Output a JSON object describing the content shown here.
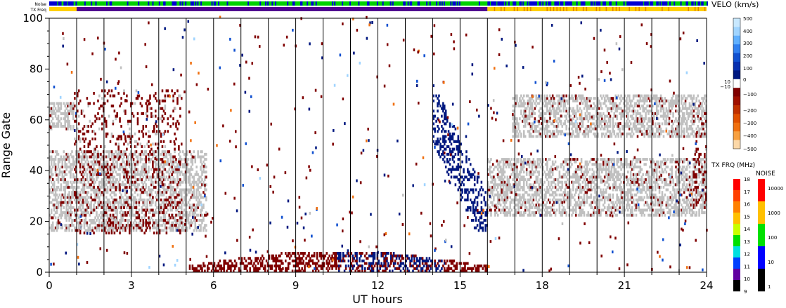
{
  "chart_data": {
    "type": "heatmap",
    "title": "",
    "xlabel": "UT hours",
    "ylabel": "Range Gate",
    "xlim": [
      0,
      24
    ],
    "ylim": [
      0,
      100
    ],
    "x_ticks": [
      "0",
      "3",
      "6",
      "9",
      "12",
      "15",
      "18",
      "21",
      "24"
    ],
    "y_ticks": [
      "0",
      "20",
      "40",
      "60",
      "80",
      "100"
    ],
    "top_strips": [
      {
        "label": "Noise",
        "colors": [
          "#00d000",
          "#0000d0",
          "#00d000"
        ]
      },
      {
        "label": "TX Freq",
        "colors": [
          "#ffd000",
          "#500090",
          "#ffd000"
        ],
        "breaks": [
          1.0,
          16.0
        ]
      }
    ],
    "velocity_scale": {
      "title": "VELO (km/s)",
      "labels": [
        "500",
        "400",
        "300",
        "200",
        "100",
        "0",
        "10",
        "−10",
        "−100",
        "−200",
        "−300",
        "−400",
        "−500"
      ],
      "colors": [
        "#c8e8ff",
        "#a0d4ff",
        "#60b0ff",
        "#3080f0",
        "#1050d0",
        "#0830b0",
        "#001880",
        "#ffffff",
        "#800000",
        "#a01000",
        "#c03000",
        "#e05000",
        "#f07010",
        "#f8a040",
        "#fcd8a8"
      ]
    },
    "txfreq_scale": {
      "title": "TX FRQ (MHz)",
      "labels": [
        "18",
        "17",
        "16",
        "15",
        "14",
        "13",
        "12",
        "11",
        "10",
        "9"
      ],
      "colors": [
        "#ff0000",
        "#ff4000",
        "#ff8000",
        "#ffc000",
        "#c8ff00",
        "#00e000",
        "#00e0e0",
        "#0040ff",
        "#6000a0",
        "#000000"
      ]
    },
    "noise_scale": {
      "title": "NOISE",
      "labels": [
        "10000",
        "1000",
        "100",
        "10",
        "1"
      ],
      "colors": [
        "#ff0000",
        "#ffc000",
        "#00e000",
        "#0000ff",
        "#000000"
      ]
    },
    "ground_scatter_color": "#c0c0c0",
    "regions": [
      {
        "name": "dayside-ground-scatter",
        "x": [
          0,
          5.7
        ],
        "y": [
          16,
          48
        ],
        "kind": "gs"
      },
      {
        "name": "early-upper-band",
        "x": [
          0,
          0.9
        ],
        "y": [
          56,
          67
        ],
        "kind": "gs"
      },
      {
        "name": "late-upper-band",
        "x": [
          16.9,
          24
        ],
        "y": [
          53,
          70
        ],
        "kind": "gs"
      },
      {
        "name": "late-lower-band",
        "x": [
          16,
          24
        ],
        "y": [
          22,
          45
        ],
        "kind": "gs"
      },
      {
        "name": "negative-velocity-arc",
        "x": [
          0.9,
          4.8
        ],
        "y": [
          15,
          72
        ],
        "kind": "neg"
      },
      {
        "name": "near-range-echoes",
        "x": [
          5,
          16
        ],
        "y": [
          0,
          8
        ],
        "kind": "mixed"
      },
      {
        "name": "positive-velocity-streak",
        "x": [
          14,
          16
        ],
        "y": [
          16,
          75
        ],
        "kind": "pos"
      },
      {
        "name": "late-red-echoes",
        "x": [
          23.5,
          24
        ],
        "y": [
          24,
          64
        ],
        "kind": "neg"
      }
    ]
  }
}
